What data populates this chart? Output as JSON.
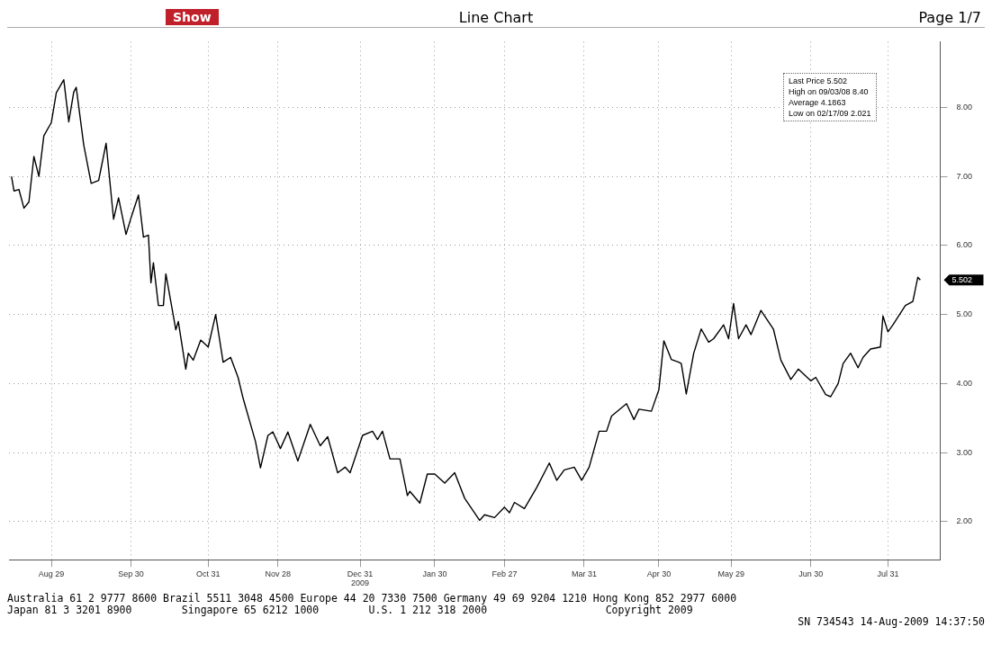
{
  "chart_data": {
    "type": "line",
    "title": "Line Chart",
    "xlim": [
      "2008-08-12",
      "2009-08-21"
    ],
    "xticks": [
      {
        "value": "2008-08-29",
        "label": "Aug 29"
      },
      {
        "value": "2008-09-30",
        "label": "Sep 30"
      },
      {
        "value": "2008-10-31",
        "label": "Oct 31"
      },
      {
        "value": "2008-11-28",
        "label": "Nov 28"
      },
      {
        "value": "2008-12-31",
        "label": "Dec 31"
      },
      {
        "value": "2009-01-30",
        "label": "Jan 30"
      },
      {
        "value": "2009-02-27",
        "label": "Feb 27"
      },
      {
        "value": "2009-03-31",
        "label": "Mar 31"
      },
      {
        "value": "2009-04-30",
        "label": "Apr 30"
      },
      {
        "value": "2009-05-29",
        "label": "May 29"
      },
      {
        "value": "2009-06-30",
        "label": "Jun 30"
      },
      {
        "value": "2009-07-31",
        "label": "Jul 31"
      }
    ],
    "ylim": [
      1.45,
      8.95
    ],
    "yticks": [
      {
        "value": 2,
        "label": "2.00"
      },
      {
        "value": 3,
        "label": "3.00"
      },
      {
        "value": 4,
        "label": "4.00"
      },
      {
        "value": 5,
        "label": "5.00"
      },
      {
        "value": 6,
        "label": "6.00"
      },
      {
        "value": 7,
        "label": "7.00"
      },
      {
        "value": 8,
        "label": "8.00"
      }
    ],
    "grid": true,
    "x": [
      "2008-08-13",
      "2008-08-14",
      "2008-08-16",
      "2008-08-18",
      "2008-08-20",
      "2008-08-22",
      "2008-08-24",
      "2008-08-26",
      "2008-08-29",
      "2008-08-31",
      "2008-09-03",
      "2008-09-05",
      "2008-09-07",
      "2008-09-08",
      "2008-09-11",
      "2008-09-14",
      "2008-09-17",
      "2008-09-20",
      "2008-09-23",
      "2008-09-25",
      "2008-09-28",
      "2008-09-30",
      "2008-10-03",
      "2008-10-05",
      "2008-10-07",
      "2008-10-08",
      "2008-10-09",
      "2008-10-11",
      "2008-10-13",
      "2008-10-14",
      "2008-10-18",
      "2008-10-19",
      "2008-10-22",
      "2008-10-23",
      "2008-10-25",
      "2008-10-28",
      "2008-10-31",
      "2008-11-03",
      "2008-11-06",
      "2008-11-09",
      "2008-11-12",
      "2008-11-14",
      "2008-11-19",
      "2008-11-21",
      "2008-11-24",
      "2008-11-26",
      "2008-11-29",
      "2008-12-02",
      "2008-12-06",
      "2008-12-11",
      "2008-12-15",
      "2008-12-18",
      "2008-12-22",
      "2008-12-25",
      "2008-12-27",
      "2009-01-01",
      "2009-01-05",
      "2009-01-07",
      "2009-01-09",
      "2009-01-12",
      "2009-01-16",
      "2009-01-19",
      "2009-01-20",
      "2009-01-24",
      "2009-01-27",
      "2009-01-30",
      "2009-02-03",
      "2009-02-07",
      "2009-02-11",
      "2009-02-17",
      "2009-02-19",
      "2009-02-23",
      "2009-02-27",
      "2009-03-01",
      "2009-03-03",
      "2009-03-07",
      "2009-03-12",
      "2009-03-17",
      "2009-03-20",
      "2009-03-23",
      "2009-03-27",
      "2009-03-30",
      "2009-04-02",
      "2009-04-06",
      "2009-04-09",
      "2009-04-11",
      "2009-04-17",
      "2009-04-20",
      "2009-04-22",
      "2009-04-27",
      "2009-04-30",
      "2009-05-02",
      "2009-05-05",
      "2009-05-08",
      "2009-05-09",
      "2009-05-11",
      "2009-05-14",
      "2009-05-17",
      "2009-05-20",
      "2009-05-22",
      "2009-05-26",
      "2009-05-28",
      "2009-05-30",
      "2009-06-01",
      "2009-06-04",
      "2009-06-06",
      "2009-06-10",
      "2009-06-15",
      "2009-06-18",
      "2009-06-22",
      "2009-06-25",
      "2009-06-30",
      "2009-07-02",
      "2009-07-06",
      "2009-07-08",
      "2009-07-11",
      "2009-07-13",
      "2009-07-16",
      "2009-07-19",
      "2009-07-21",
      "2009-07-24",
      "2009-07-28",
      "2009-07-29",
      "2009-07-31",
      "2009-08-02",
      "2009-08-07",
      "2009-08-10",
      "2009-08-12",
      "2009-08-13"
    ],
    "series": [
      {
        "color": "#000000",
        "values": [
          7.0,
          6.79,
          6.81,
          6.54,
          6.63,
          7.29,
          7.0,
          7.59,
          7.78,
          8.21,
          8.4,
          7.79,
          8.22,
          8.29,
          7.46,
          6.9,
          6.94,
          7.48,
          6.38,
          6.69,
          6.16,
          6.4,
          6.73,
          6.12,
          6.15,
          5.46,
          5.75,
          5.13,
          5.13,
          5.59,
          4.78,
          4.9,
          4.21,
          4.44,
          4.34,
          4.63,
          4.53,
          5.0,
          4.31,
          4.38,
          4.09,
          3.79,
          3.16,
          2.78,
          3.25,
          3.3,
          3.06,
          3.3,
          2.88,
          3.41,
          3.1,
          3.23,
          2.71,
          2.79,
          2.71,
          3.25,
          3.31,
          3.19,
          3.31,
          2.91,
          2.91,
          2.38,
          2.44,
          2.27,
          2.69,
          2.69,
          2.56,
          2.71,
          2.34,
          2.02,
          2.1,
          2.06,
          2.21,
          2.13,
          2.28,
          2.19,
          2.5,
          2.85,
          2.6,
          2.75,
          2.79,
          2.6,
          2.79,
          3.31,
          3.31,
          3.53,
          3.71,
          3.48,
          3.63,
          3.6,
          3.91,
          4.62,
          4.35,
          4.31,
          4.29,
          3.85,
          4.44,
          4.79,
          4.6,
          4.65,
          4.85,
          4.65,
          5.16,
          4.65,
          4.85,
          4.71,
          5.06,
          4.79,
          4.34,
          4.06,
          4.21,
          4.04,
          4.09,
          3.84,
          3.81,
          4.0,
          4.29,
          4.44,
          4.23,
          4.38,
          4.5,
          4.53,
          4.98,
          4.75,
          4.85,
          5.13,
          5.19,
          5.54,
          5.5
        ]
      }
    ],
    "annotations": [
      "Show",
      "Page 1/7",
      "Last Price  5.502",
      "High on 09/03/08  8.40",
      "Average  4.1863",
      "Low on 02/17/09  2.021",
      "Australia 61 2 9777 8600 Brazil 5511 3048 4500 Europe 44 20 7330 7500 Germany 49 69 9204 1210 Hong Kong 852 2977 6000",
      "Japan 81 3 3201 8900        Singapore 65 6212 1000        U.S. 1 212 318 2000                   Copyright 2009",
      "SN 734543 14-Aug-2009 14:37:50",
      "5.502",
      "2009"
    ]
  }
}
